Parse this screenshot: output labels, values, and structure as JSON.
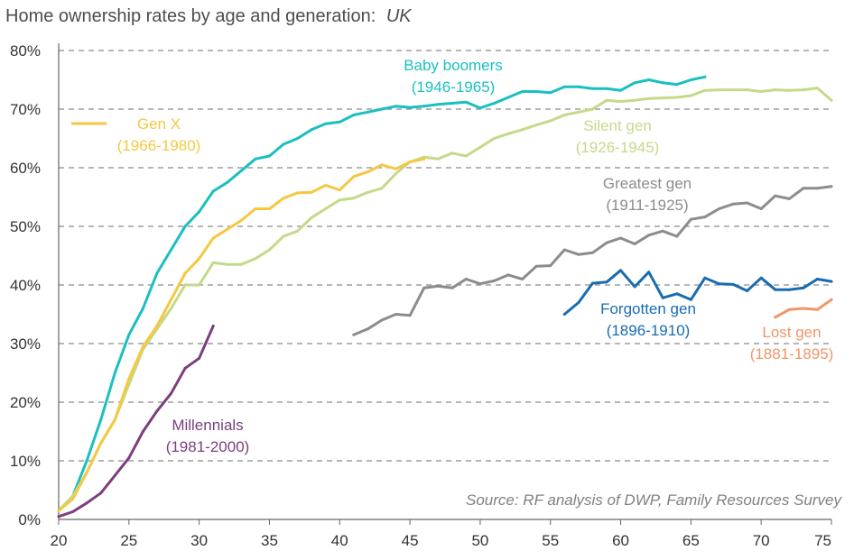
{
  "chart_data": {
    "type": "line",
    "title": "Home ownership rates by age and generation:",
    "title_emphasis": "UK",
    "source": "Source: RF analysis of DWP, Family Resources Survey",
    "xlim": [
      20,
      75
    ],
    "ylim": [
      0,
      80
    ],
    "x_ticks": [
      "20",
      "25",
      "30",
      "35",
      "40",
      "45",
      "50",
      "55",
      "60",
      "65",
      "70",
      "75"
    ],
    "y_ticks": [
      "0%",
      "10%",
      "20%",
      "30%",
      "40%",
      "50%",
      "60%",
      "70%",
      "80%"
    ],
    "grid": "horizontal dashed",
    "series": [
      {
        "name": "Baby boomers",
        "years": "(1946-1965)",
        "color": "#1bbfbf",
        "x": [
          20,
          21,
          22,
          23,
          24,
          25,
          26,
          27,
          28,
          29,
          30,
          31,
          32,
          33,
          34,
          35,
          36,
          37,
          38,
          39,
          40,
          41,
          42,
          43,
          44,
          45,
          46,
          47,
          48,
          49,
          50,
          51,
          52,
          53,
          54,
          55,
          56,
          57,
          58,
          59,
          60,
          61,
          62,
          63,
          64,
          65,
          66
        ],
        "y": [
          1.5,
          4,
          10,
          17,
          25,
          31.5,
          36,
          42,
          46,
          50,
          52.5,
          56,
          57.5,
          59.5,
          61.5,
          62,
          64,
          65,
          66.5,
          67.5,
          67.8,
          69,
          69.5,
          70,
          70.5,
          70.3,
          70.5,
          70.8,
          71,
          71.2,
          70.2,
          71,
          72,
          73,
          73,
          72.8,
          73.8,
          73.8,
          73.5,
          73.5,
          73.2,
          74.5,
          75,
          74.5,
          74.2,
          75,
          75.5
        ]
      },
      {
        "name": "Silent gen",
        "years": "(1926-1945)",
        "color": "#c5d98a",
        "x": [
          20,
          21,
          22,
          23,
          24,
          25,
          26,
          27,
          28,
          29,
          30,
          31,
          32,
          33,
          34,
          35,
          36,
          37,
          38,
          39,
          40,
          41,
          42,
          43,
          44,
          45,
          46,
          47,
          48,
          49,
          50,
          51,
          52,
          53,
          54,
          55,
          56,
          57,
          58,
          59,
          60,
          61,
          62,
          63,
          64,
          65,
          66,
          67,
          68,
          69,
          70,
          71,
          72,
          73,
          74,
          75
        ],
        "y": [
          1.5,
          4,
          8,
          13,
          17,
          23,
          29,
          32.5,
          36,
          40,
          40,
          43.8,
          43.5,
          43.5,
          44.5,
          46,
          48.3,
          49.2,
          51.5,
          53,
          54.5,
          54.8,
          55.8,
          56.5,
          59,
          61,
          61.8,
          61.5,
          62.5,
          62,
          63.5,
          65,
          65.8,
          66.5,
          67.3,
          68,
          69,
          69.5,
          70,
          71.5,
          71.3,
          71.5,
          71.8,
          71.9,
          72,
          72.3,
          73.2,
          73.3,
          73.3,
          73.3,
          73,
          73.3,
          73.2,
          73.3,
          73.6,
          71.5
        ]
      },
      {
        "name": "Gen X",
        "years": "(1966-1980)",
        "color": "#f5c842",
        "x": [
          20,
          21,
          22,
          23,
          24,
          25,
          26,
          27,
          28,
          29,
          30,
          31,
          32,
          33,
          34,
          35,
          36,
          37,
          38,
          39,
          40,
          41,
          42,
          43,
          44,
          45,
          46
        ],
        "y": [
          1.5,
          3.5,
          8,
          13,
          17,
          24,
          29.5,
          33,
          37.5,
          42,
          44.5,
          48,
          49.5,
          51,
          53,
          53,
          54.8,
          55.7,
          55.8,
          57,
          56.2,
          58.5,
          59.3,
          60.5,
          59.8,
          61,
          61.5
        ]
      },
      {
        "name": "Millennials",
        "years": "(1981-2000)",
        "color": "#7b3f7d",
        "x": [
          20,
          21,
          22,
          23,
          24,
          25,
          26,
          27,
          28,
          29,
          30,
          31
        ],
        "y": [
          0.5,
          1.3,
          2.8,
          4.5,
          7.5,
          10.5,
          15,
          18.5,
          21.5,
          25.8,
          27.5,
          33
        ]
      },
      {
        "name": "Greatest gen",
        "years": "(1911-1925)",
        "color": "#8c8c8c",
        "x": [
          41,
          42,
          43,
          44,
          45,
          46,
          47,
          48,
          49,
          50,
          51,
          52,
          53,
          54,
          55,
          56,
          57,
          58,
          59,
          60,
          61,
          62,
          63,
          64,
          65,
          66,
          67,
          68,
          69,
          70,
          71,
          72,
          73,
          74,
          75
        ],
        "y": [
          31.5,
          32.5,
          34,
          35,
          34.8,
          39.5,
          39.8,
          39.5,
          41,
          40.2,
          40.7,
          41.7,
          41,
          43.2,
          43.3,
          46,
          45.2,
          45.5,
          47.2,
          48,
          47,
          48.5,
          49.2,
          48.3,
          51.2,
          51.6,
          53,
          53.8,
          54,
          53,
          55.2,
          54.7,
          56.5,
          56.5,
          56.8
        ]
      },
      {
        "name": "Forgotten gen",
        "years": "(1896-1910)",
        "color": "#1a6cb0",
        "x": [
          56,
          57,
          58,
          59,
          60,
          61,
          62,
          63,
          64,
          65,
          66,
          67,
          68,
          69,
          70,
          71,
          72,
          73,
          74,
          75
        ],
        "y": [
          35,
          37,
          40.3,
          40.5,
          42.5,
          39.7,
          42.2,
          37.8,
          38.5,
          37.5,
          41.2,
          40.2,
          40.1,
          39,
          41.2,
          39.2,
          39.2,
          39.5,
          41,
          40.6
        ]
      },
      {
        "name": "Lost gen",
        "years": "(1881-1895)",
        "color": "#f0956a",
        "x": [
          71,
          72,
          73,
          74,
          75
        ],
        "y": [
          34.5,
          35.8,
          36,
          35.8,
          37.5
        ]
      }
    ]
  }
}
